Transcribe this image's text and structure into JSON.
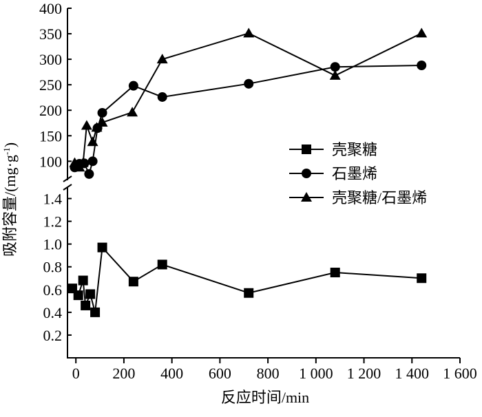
{
  "chart_data": {
    "type": "line",
    "x_label": "反应时间/min",
    "y_label": {
      "text": "吸附容量/(mg·g",
      "sup": "-1",
      "end": ")"
    },
    "xlim": [
      -35,
      1600
    ],
    "xticks": [
      0,
      200,
      400,
      600,
      800,
      {
        "value": 1000,
        "label": "1 000"
      },
      {
        "value": 1200,
        "label": "1 200"
      },
      {
        "value": 1400,
        "label": "1 400"
      },
      {
        "value": 1600,
        "label": "1 600"
      }
    ],
    "ylim": [
      0,
      1.5
    ],
    "yticks": [
      0.2,
      0.4,
      0.6,
      0.8,
      {
        "value": 1.0,
        "label": "1.0"
      },
      1.2,
      1.4
    ],
    "y2lim": [
      60,
      400
    ],
    "y2ticks": [
      100,
      150,
      200,
      250,
      300,
      350,
      400
    ],
    "series": [
      {
        "name": "壳聚糖",
        "marker": "square",
        "color": "#000000",
        "x": [
          -15,
          10,
          30,
          40,
          60,
          80,
          110,
          240,
          360,
          720,
          1080,
          1440
        ],
        "values": [
          0.61,
          0.55,
          0.68,
          0.46,
          0.56,
          0.4,
          0.97,
          0.67,
          0.82,
          0.57,
          0.75,
          0.7
        ]
      },
      {
        "name": "石墨烯",
        "marker": "circle",
        "color": "#000000",
        "axis": "y2",
        "x": [
          -5,
          15,
          35,
          55,
          70,
          90,
          110,
          240,
          360,
          720,
          1080,
          1440
        ],
        "values": [
          88,
          95,
          96,
          75,
          100,
          165,
          195,
          248,
          226,
          252,
          285,
          288
        ]
      },
      {
        "name": "壳聚糖/石墨烯",
        "marker": "triangle",
        "color": "#000000",
        "axis": "y2",
        "x": [
          -5,
          15,
          30,
          45,
          70,
          87,
          110,
          235,
          360,
          720,
          1080,
          1440
        ],
        "values": [
          97,
          88,
          97,
          170,
          138,
          166,
          176,
          196,
          300,
          351,
          268,
          351
        ]
      }
    ]
  }
}
